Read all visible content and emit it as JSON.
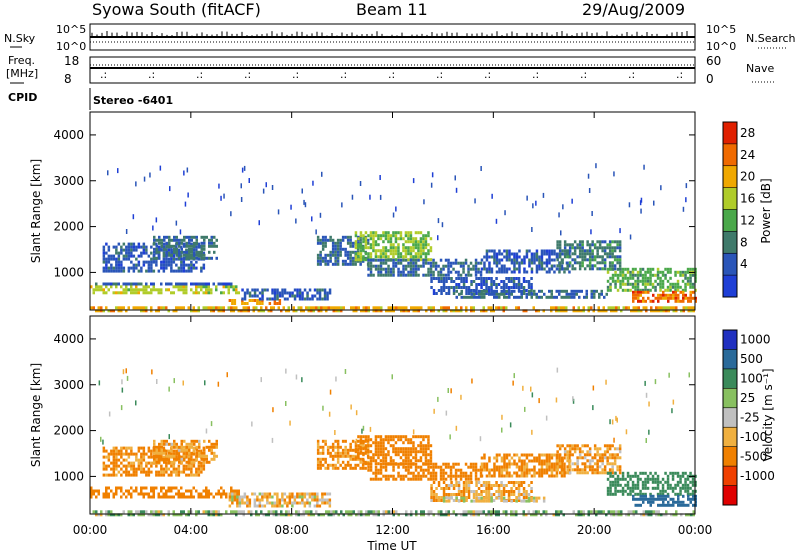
{
  "header": {
    "title": "Syowa South (fitACF)",
    "beam": "Beam 11",
    "date": "29/Aug/2009"
  },
  "noise_panel": {
    "left_label": "N.Sky",
    "right_label": "N.Search",
    "left_ticks": [
      "10^5",
      "10^0"
    ],
    "right_ticks": [
      "10^5",
      "10^0"
    ]
  },
  "freq_panel": {
    "left_label_1": "Freq.",
    "left_label_2": "[MHz]",
    "left_ticks": [
      "18",
      "8"
    ],
    "right_label": "Nave",
    "right_ticks": [
      "60",
      "0"
    ]
  },
  "cpid": {
    "label": "CPID",
    "value": "Stereo -6401"
  },
  "x_axis": {
    "label": "Time UT",
    "ticks": [
      "00:00",
      "04:00",
      "08:00",
      "12:00",
      "16:00",
      "20:00",
      "00:00"
    ]
  },
  "colors": {
    "power": [
      "#1f3fd6",
      "#2a55b8",
      "#3f7a6b",
      "#4aa84a",
      "#b0cc2a",
      "#f0a800",
      "#f06a00",
      "#e02000"
    ],
    "velocity": [
      "#e00000",
      "#f04000",
      "#f08000",
      "#f0b040",
      "#c0c0c0",
      "#88c060",
      "#3a8a5a",
      "#2a6a9a",
      "#2030c0"
    ]
  },
  "chart_data": [
    {
      "type": "heatmap",
      "name": "Power",
      "ylabel": "Slant Range [km]",
      "xlabel": "Time UT",
      "ylim": [
        180,
        4500
      ],
      "xlim": [
        0,
        24
      ],
      "y_ticks": [
        "4000",
        "3000",
        "2000",
        "1000"
      ],
      "y_tick_values": [
        4000,
        3000,
        2000,
        1000
      ],
      "colorbar_label": "Power [dB]",
      "colorbar_ticks": [
        "28",
        "24",
        "20",
        "16",
        "12",
        "8",
        "4"
      ],
      "colorbar_tick_values": [
        28,
        24,
        20,
        16,
        12,
        8,
        4
      ],
      "colorbar_range": [
        0,
        32
      ],
      "bands": [
        {
          "t": [
            0.0,
            5.9
          ],
          "r": [
            580,
            720
          ],
          "v": 18
        },
        {
          "t": [
            0.2,
            5.8
          ],
          "r": [
            720,
            780
          ],
          "v": 6
        },
        {
          "t": [
            0.5,
            4.5
          ],
          "r": [
            1050,
            1650
          ],
          "v": 6
        },
        {
          "t": [
            2.5,
            5.0
          ],
          "r": [
            1300,
            1800
          ],
          "v": 9
        },
        {
          "t": [
            5.5,
            7.5
          ],
          "r": [
            300,
            420
          ],
          "v": 24
        },
        {
          "t": [
            6.0,
            9.5
          ],
          "r": [
            420,
            650
          ],
          "v": 6
        },
        {
          "t": [
            9.0,
            11.0
          ],
          "r": [
            1200,
            1800
          ],
          "v": 8
        },
        {
          "t": [
            10.5,
            13.5
          ],
          "r": [
            1300,
            1900
          ],
          "v": 16
        },
        {
          "t": [
            11.0,
            15.5
          ],
          "r": [
            950,
            1300
          ],
          "v": 8
        },
        {
          "t": [
            13.5,
            17.5
          ],
          "r": [
            550,
            900
          ],
          "v": 6
        },
        {
          "t": [
            14.5,
            20.5
          ],
          "r": [
            450,
            620
          ],
          "v": 8
        },
        {
          "t": [
            15.5,
            19.0
          ],
          "r": [
            1000,
            1500
          ],
          "v": 6
        },
        {
          "t": [
            18.5,
            21.0
          ],
          "r": [
            1100,
            1700
          ],
          "v": 10
        },
        {
          "t": [
            20.5,
            24.0
          ],
          "r": [
            600,
            1100
          ],
          "v": 14
        },
        {
          "t": [
            21.5,
            24.0
          ],
          "r": [
            350,
            600
          ],
          "v": 26
        },
        {
          "t": [
            0.0,
            24.0
          ],
          "r": [
            180,
            260
          ],
          "v": 22
        }
      ]
    },
    {
      "type": "heatmap",
      "name": "Velocity",
      "ylabel": "Slant Range [km]",
      "xlabel": "Time UT",
      "ylim": [
        180,
        4500
      ],
      "xlim": [
        0,
        24
      ],
      "y_ticks": [
        "4000",
        "3000",
        "2000",
        "1000"
      ],
      "y_tick_values": [
        4000,
        3000,
        2000,
        1000
      ],
      "colorbar_label": "Velocity [m s⁻¹]",
      "colorbar_ticks": [
        "1000",
        "500",
        "100",
        "25",
        "-25",
        "-100",
        "-500",
        "-1000"
      ],
      "colorbar_tick_values": [
        1000,
        500,
        100,
        25,
        -25,
        -100,
        -500,
        -1000
      ],
      "bands": [
        {
          "t": [
            0.0,
            5.9
          ],
          "r": [
            580,
            780
          ],
          "v": -300
        },
        {
          "t": [
            0.5,
            4.5
          ],
          "r": [
            1050,
            1650
          ],
          "v": -150
        },
        {
          "t": [
            2.5,
            5.0
          ],
          "r": [
            1300,
            1800
          ],
          "v": -120
        },
        {
          "t": [
            5.5,
            9.5
          ],
          "r": [
            350,
            650
          ],
          "v": -60
        },
        {
          "t": [
            9.0,
            11.0
          ],
          "r": [
            1200,
            1800
          ],
          "v": -150
        },
        {
          "t": [
            10.5,
            13.5
          ],
          "r": [
            1300,
            1900
          ],
          "v": -400
        },
        {
          "t": [
            11.0,
            15.5
          ],
          "r": [
            950,
            1300
          ],
          "v": -200
        },
        {
          "t": [
            13.5,
            17.5
          ],
          "r": [
            500,
            900
          ],
          "v": -80
        },
        {
          "t": [
            14.0,
            18.0
          ],
          "r": [
            450,
            560
          ],
          "v": 0
        },
        {
          "t": [
            15.5,
            19.0
          ],
          "r": [
            1000,
            1500
          ],
          "v": -150
        },
        {
          "t": [
            18.5,
            21.0
          ],
          "r": [
            1100,
            1700
          ],
          "v": -100
        },
        {
          "t": [
            20.5,
            24.0
          ],
          "r": [
            600,
            1100
          ],
          "v": 300
        },
        {
          "t": [
            21.5,
            24.0
          ],
          "r": [
            350,
            600
          ],
          "v": 700
        },
        {
          "t": [
            0.0,
            24.0
          ],
          "r": [
            180,
            260
          ],
          "v": 60
        }
      ]
    }
  ]
}
